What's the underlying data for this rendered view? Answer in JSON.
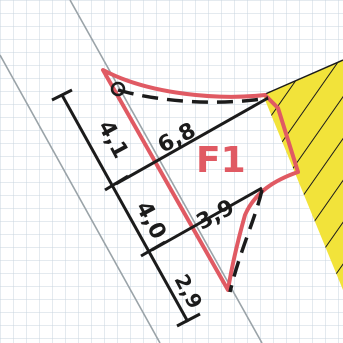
{
  "figure": {
    "area_label": "F1",
    "measurements": [
      {
        "id": "edge-left-1",
        "text": "4,1"
      },
      {
        "id": "edge-left-2",
        "text": "4,0"
      },
      {
        "id": "edge-left-3",
        "text": "2,9"
      },
      {
        "id": "offset-top",
        "text": "6,8"
      },
      {
        "id": "offset-middle",
        "text": "3,9"
      }
    ],
    "colors": {
      "grid": "#c9d4df",
      "outline": "#e05a63",
      "ink": "#1b1b1b",
      "hatch_fill": "#f2e33a",
      "border_lines": "#9aa3a8"
    }
  }
}
